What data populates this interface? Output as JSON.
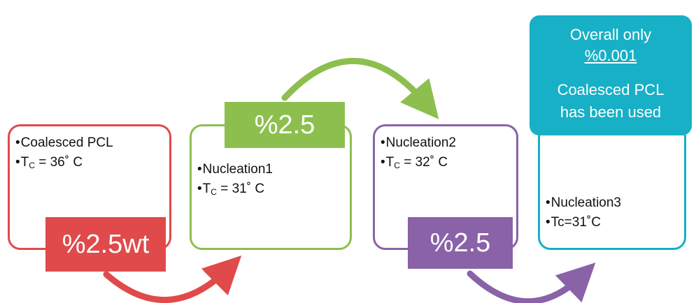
{
  "colors": {
    "red": "#e04a4a",
    "green": "#8dbf4f",
    "purple": "#8a62a8",
    "cyan": "#17b0c6"
  },
  "step1": {
    "line1": "Coalesced PCL",
    "tc_prefix": "T",
    "tc_sub": "C",
    "tc_value": " = 36˚ C",
    "tag": "%2.5wt"
  },
  "step2": {
    "line1": "Nucleation1",
    "tc_prefix": "T",
    "tc_sub": "C",
    "tc_value": " = 31˚ C",
    "tag": "%2.5"
  },
  "step3": {
    "line1": "Nucleation2",
    "tc_prefix": "T",
    "tc_sub": "C",
    "tc_value": " = 32˚ C",
    "tag": "%2.5"
  },
  "step4": {
    "line1": "Nucleation3",
    "line2": "Tc=31˚C"
  },
  "note": {
    "line1": "Overall only",
    "line2": "%0.001",
    "line3": "Coalesced PCL",
    "line4": "has been used"
  },
  "bullet": "•"
}
